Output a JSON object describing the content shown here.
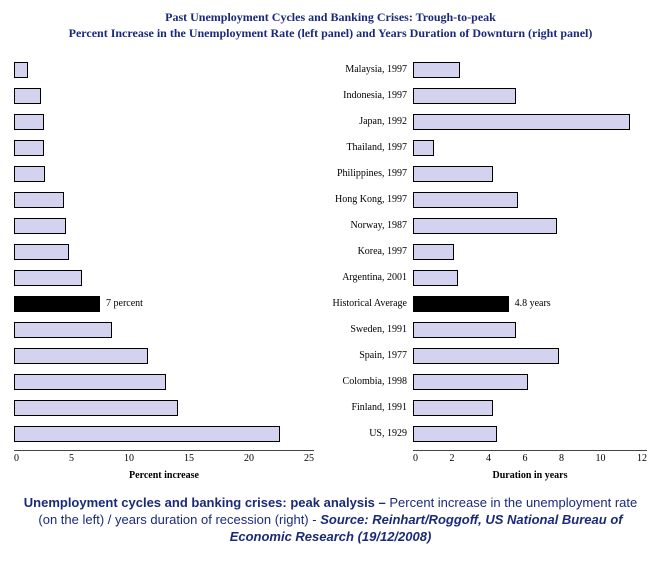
{
  "title": {
    "line1": "Past Unemployment Cycles and Banking Crises: Trough-to-peak",
    "line2": "Percent Increase in the Unemployment Rate (left panel) and Years Duration of Downturn (right panel)",
    "color": "#1a2a7a",
    "fontsize": 12
  },
  "chart": {
    "type": "bar",
    "categories": [
      "Malaysia, 1997",
      "Indonesia, 1997",
      "Japan, 1992",
      "Thailand, 1997",
      "Philippines, 1997",
      "Hong Kong, 1997",
      "Norway, 1987",
      "Korea, 1997",
      "Argentina, 2001",
      "Historical Average",
      "Sweden, 1991",
      "Spain, 1977",
      "Colombia, 1998",
      "Finland, 1991",
      "US, 1929"
    ],
    "highlight_index": 9,
    "left": {
      "values": [
        1.0,
        2.1,
        2.3,
        2.3,
        2.4,
        4.0,
        4.2,
        4.4,
        5.5,
        7.0,
        8.0,
        11.0,
        12.5,
        13.5,
        22.0
      ],
      "xlim": [
        0,
        25
      ],
      "xtick_step": 5,
      "xlabel": "Percent increase",
      "data_label": "7 percent"
    },
    "right": {
      "values": [
        2.3,
        5.2,
        11.0,
        1.0,
        4.0,
        5.3,
        7.3,
        2.0,
        2.2,
        4.8,
        5.2,
        7.4,
        5.8,
        4.0,
        4.2
      ],
      "xlim": [
        0,
        12
      ],
      "xtick_step": 2,
      "xlabel": "Duration in years",
      "data_label": "4.8 years"
    },
    "bar_color": "#d3d3ef",
    "highlight_color": "#000000",
    "bar_border": "#000000",
    "background_color": "#ffffff",
    "label_fontsize": 10,
    "axis_fontsize": 10
  },
  "caption": {
    "bold_lead": "Unemployment cycles and banking crises: peak analysis – ",
    "body": "Percent increase in the unemployment rate (on the left) / years duration of recession (right) - ",
    "source": "Source: Reinhart/Roggoff, US National Bureau of Economic Research (19/12/2008)",
    "color": "#1a2a7a",
    "fontsize": 13
  }
}
